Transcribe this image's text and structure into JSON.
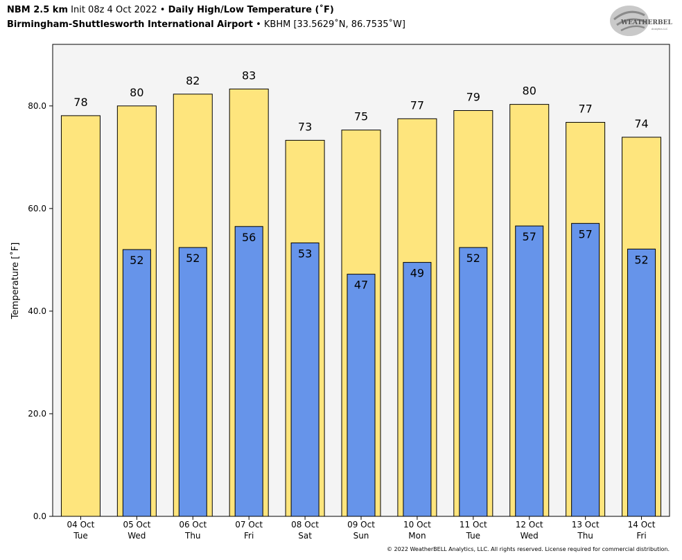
{
  "header": {
    "model": "NBM 2.5 km",
    "init": "Init 08z 4 Oct 2022",
    "bullet": "•",
    "product": "Daily High/Low Temperature (˚F)",
    "station_name": "Birmingham-Shuttlesworth International Airport",
    "station_info": "KBHM [33.5629˚N, 86.7535˚W]"
  },
  "logo": {
    "text_main": "WEATHERBELL",
    "text_sub": "Analytics LLC"
  },
  "footer": "© 2022 WeatherBELL Analytics, LLC. All rights reserved. License required for commercial distribution.",
  "chart_data": {
    "type": "bar",
    "ylabel": "Temperature [˚F]",
    "ylim": [
      0,
      92
    ],
    "yticks": [
      "0.0",
      "20.0",
      "40.0",
      "60.0",
      "80.0"
    ],
    "ytick_values": [
      0,
      20,
      40,
      60,
      80
    ],
    "grid": false,
    "categories": [
      {
        "date": "04 Oct",
        "day": "Tue"
      },
      {
        "date": "05 Oct",
        "day": "Wed"
      },
      {
        "date": "06 Oct",
        "day": "Thu"
      },
      {
        "date": "07 Oct",
        "day": "Fri"
      },
      {
        "date": "08 Oct",
        "day": "Sat"
      },
      {
        "date": "09 Oct",
        "day": "Sun"
      },
      {
        "date": "10 Oct",
        "day": "Mon"
      },
      {
        "date": "11 Oct",
        "day": "Tue"
      },
      {
        "date": "12 Oct",
        "day": "Wed"
      },
      {
        "date": "13 Oct",
        "day": "Thu"
      },
      {
        "date": "14 Oct",
        "day": "Fri"
      }
    ],
    "series": [
      {
        "color": "#fee57d",
        "values": [
          78.1,
          80.0,
          82.3,
          83.3,
          73.3,
          75.3,
          77.5,
          79.1,
          80.3,
          76.8,
          73.9
        ],
        "labels": [
          "78",
          "80",
          "82",
          "83",
          "73",
          "75",
          "77",
          "79",
          "80",
          "77",
          "74"
        ]
      },
      {
        "color": "#6694ea",
        "values": [
          null,
          52.0,
          52.4,
          56.5,
          53.3,
          47.2,
          49.5,
          52.4,
          56.6,
          57.1,
          52.1
        ],
        "labels": [
          null,
          "52",
          "52",
          "56",
          "53",
          "47",
          "49",
          "52",
          "57",
          "57",
          "52"
        ]
      }
    ],
    "plot_background": "#f4f4f4"
  }
}
